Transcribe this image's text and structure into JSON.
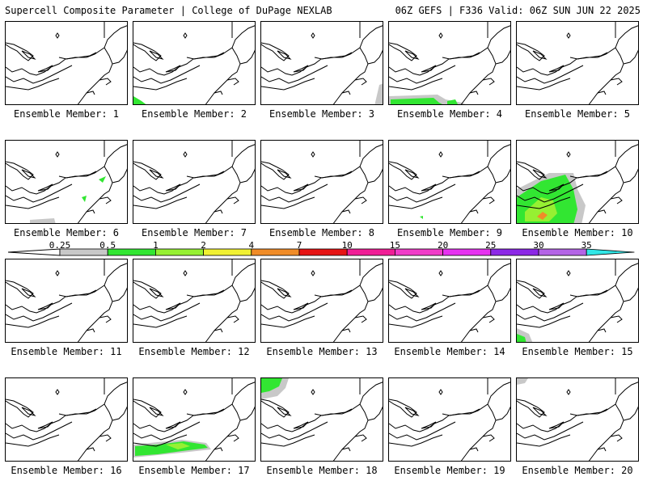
{
  "header": {
    "left": "Supercell Composite Parameter | College of DuPage NEXLAB",
    "right": "06Z GEFS | F336 Valid: 06Z SUN JUN 22 2025"
  },
  "member_label_prefix": "Ensemble Member: ",
  "members": [
    1,
    2,
    3,
    4,
    5,
    6,
    7,
    8,
    9,
    10,
    11,
    12,
    13,
    14,
    15,
    16,
    17,
    18,
    19,
    20
  ],
  "colorbar": {
    "labels": [
      "0.25",
      "0.5",
      "1",
      "2",
      "4",
      "7",
      "10",
      "15",
      "20",
      "25",
      "30",
      "35"
    ],
    "colors": [
      "#c8c8c8",
      "#32e632",
      "#96f032",
      "#f0f032",
      "#f08c28",
      "#e61414",
      "#f01e96",
      "#f03cc8",
      "#e632f0",
      "#8c28e6",
      "#b464e6",
      "#32e6e6"
    ]
  },
  "shading": {
    "2": [
      [
        "#32e632",
        "M0,92 L10,98 L18,104 L0,104 Z"
      ]
    ],
    "3": [
      [
        "#c8c8c8",
        "M146,78 L152,76 L152,104 L140,104 Z"
      ]
    ],
    "4": [
      [
        "#c8c8c8",
        "M0,92 L60,90 L70,96 L90,100 L100,104 L0,104 Z"
      ],
      [
        "#32e632",
        "M2,96 L55,94 L62,100 L70,104 L2,104 Z"
      ],
      [
        "#32e632",
        "M72,98 L82,96 L86,104 L72,104 Z"
      ]
    ],
    "6": [
      [
        "#c8c8c8",
        "M30,98 L60,96 L62,104 L30,104 Z"
      ],
      [
        "#32e632",
        "M115,48 L124,44 L120,52 Z"
      ],
      [
        "#32e632",
        "M94,70 L100,68 L98,76 Z"
      ]
    ],
    "9": [
      [
        "#32e632",
        "M38,94 L42,93 L42,97 Z"
      ]
    ],
    "10": [
      [
        "#c8c8c8",
        "M0,60 L40,40 L70,40 L75,60 L85,80 L80,104 L0,104 Z"
      ],
      [
        "#32e632",
        "M0,70 L30,50 L60,42 L70,60 L75,85 L70,104 L0,104 Z"
      ],
      [
        "#96f032",
        "M10,88 L30,70 L45,74 L50,90 L40,100 L10,100 Z"
      ],
      [
        "#f08c28",
        "M25,94 L32,88 L38,92 L32,98 Z"
      ]
    ],
    "15": [
      [
        "#c8c8c8",
        "M0,85 L15,92 L20,104 L0,104 Z"
      ],
      [
        "#32e632",
        "M0,92 L10,96 L12,104 L0,104 Z"
      ]
    ],
    "17": [
      [
        "#c8c8c8",
        "M0,82 L20,80 L60,76 L90,80 L96,88 L60,92 L20,96 L0,98 Z"
      ],
      [
        "#32e632",
        "M2,84 L30,82 L62,78 L88,82 L92,86 L60,90 L30,94 L2,96 Z"
      ],
      [
        "#96f032",
        "M40,82 L60,80 L70,84 L55,88 Z"
      ]
    ],
    "18": [
      [
        "#c8c8c8",
        "M0,0 L34,0 L30,12 L20,22 L0,26 Z"
      ],
      [
        "#32e632",
        "M0,0 L26,0 L22,10 L10,16 L0,18 Z"
      ]
    ],
    "20": [
      [
        "#c8c8c8",
        "M0,0 L14,0 L10,6 L0,8 Z"
      ]
    ]
  }
}
